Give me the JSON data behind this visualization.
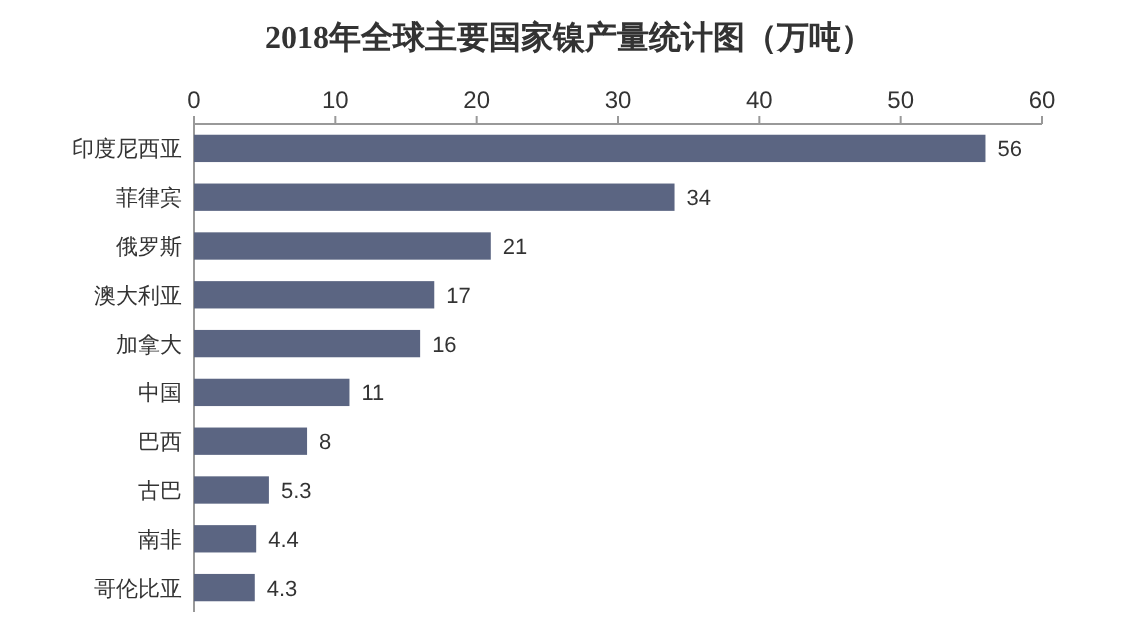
{
  "chart_data": {
    "type": "bar",
    "orientation": "horizontal",
    "title": "2018年全球主要国家镍产量统计图（万吨）",
    "categories": [
      "印度尼西亚",
      "菲律宾",
      "俄罗斯",
      "澳大利亚",
      "加拿大",
      "中国",
      "巴西",
      "古巴",
      "南非",
      "哥伦比亚"
    ],
    "values": [
      56,
      34,
      21,
      17,
      16,
      11,
      8,
      5.3,
      4.4,
      4.3
    ],
    "color": "#5b6582",
    "xlim": [
      0,
      60
    ],
    "xticks": [
      0,
      10,
      20,
      30,
      40,
      50,
      60
    ],
    "data_labels": true
  }
}
